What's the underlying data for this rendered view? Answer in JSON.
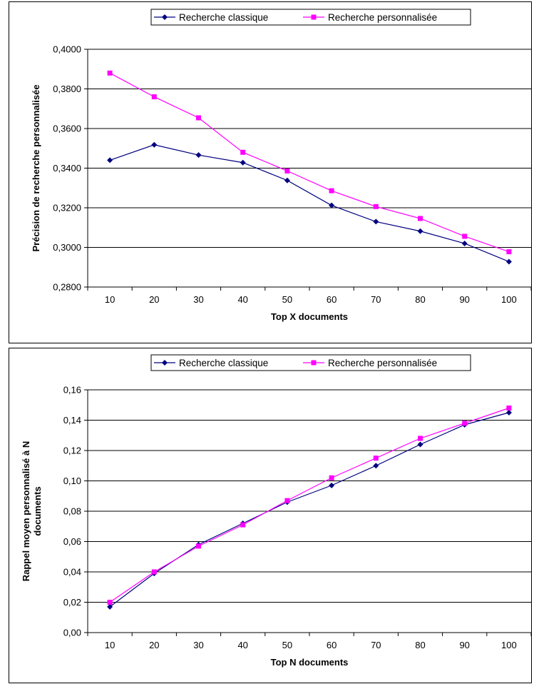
{
  "colors": {
    "classique": "#00007f",
    "personnalisee": "#ff00ff",
    "grid": "#000000"
  },
  "legend": {
    "series_a": "Recherche classique",
    "series_b": "Recherche personnalisée"
  },
  "chart_data": [
    {
      "type": "line",
      "title": "",
      "xlabel": "Top X documents",
      "ylabel": "Précision de recherche personnalisée",
      "x": [
        10,
        20,
        30,
        40,
        50,
        60,
        70,
        80,
        90,
        100
      ],
      "ylim": [
        0.28,
        0.4
      ],
      "yticks": [
        "0,2800",
        "0,3000",
        "0,3200",
        "0,3400",
        "0,3600",
        "0,3800",
        "0,4000"
      ],
      "ytick_values": [
        0.28,
        0.3,
        0.32,
        0.34,
        0.36,
        0.38,
        0.4
      ],
      "grid": true,
      "legend_position": "top",
      "series": [
        {
          "name": "Recherche classique",
          "marker": "diamond",
          "values": [
            0.344,
            0.3518,
            0.3466,
            0.3428,
            0.3338,
            0.3212,
            0.313,
            0.3082,
            0.302,
            0.2928
          ]
        },
        {
          "name": "Recherche personnalisée",
          "marker": "square",
          "values": [
            0.388,
            0.376,
            0.3654,
            0.348,
            0.3386,
            0.3286,
            0.3206,
            0.3146,
            0.3056,
            0.2978
          ]
        }
      ]
    },
    {
      "type": "line",
      "title": "",
      "xlabel": "Top N documents",
      "ylabel_lines": [
        "Rappel moyen personnalisé à N",
        "documents"
      ],
      "x": [
        10,
        20,
        30,
        40,
        50,
        60,
        70,
        80,
        90,
        100
      ],
      "ylim": [
        0,
        0.16
      ],
      "yticks": [
        "0,00",
        "0,02",
        "0,04",
        "0,06",
        "0,08",
        "0,10",
        "0,12",
        "0,14",
        "0,16"
      ],
      "ytick_values": [
        0,
        0.02,
        0.04,
        0.06,
        0.08,
        0.1,
        0.12,
        0.14,
        0.16
      ],
      "grid": true,
      "legend_position": "top",
      "series": [
        {
          "name": "Recherche classique",
          "marker": "diamond",
          "values": [
            0.017,
            0.039,
            0.058,
            0.072,
            0.086,
            0.097,
            0.11,
            0.124,
            0.137,
            0.145
          ]
        },
        {
          "name": "Recherche personnalisée",
          "marker": "square",
          "values": [
            0.02,
            0.04,
            0.057,
            0.071,
            0.087,
            0.102,
            0.115,
            0.128,
            0.138,
            0.148
          ]
        }
      ]
    }
  ]
}
